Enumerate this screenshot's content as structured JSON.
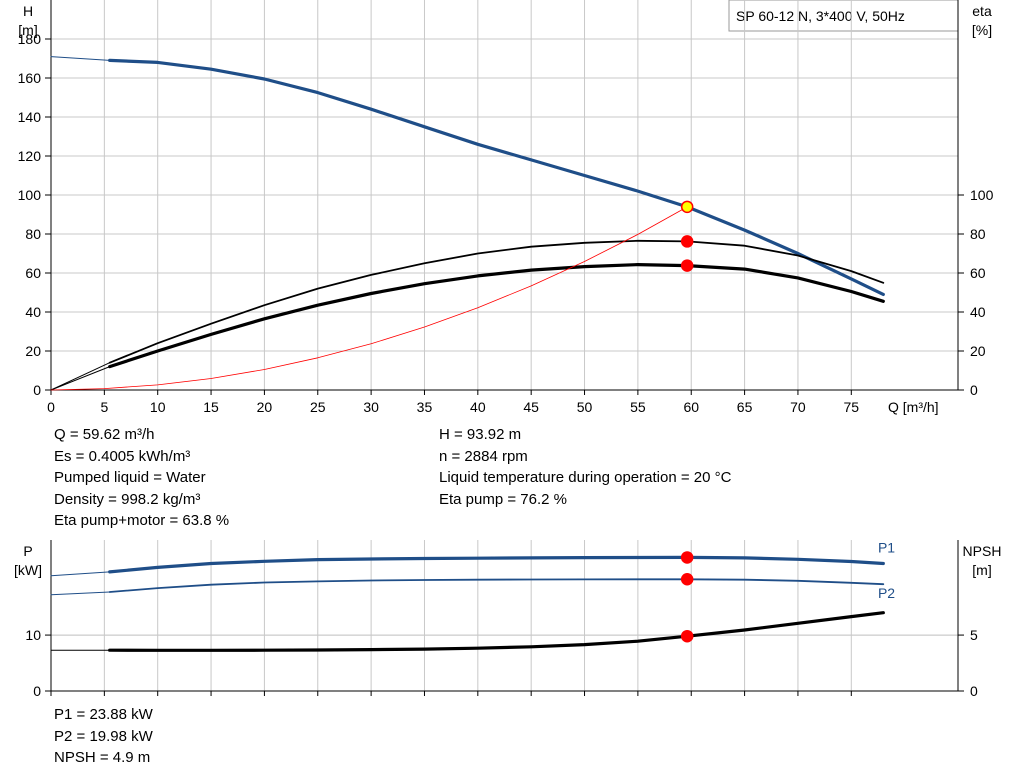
{
  "model_box": "SP 60-12 N, 3*400 V, 50Hz",
  "colors": {
    "head_curve": "#1f4e88",
    "efficiency_curve": "#000000",
    "system_curve": "#ff0000",
    "duty_point": "#ff0000",
    "duty_point_head": "#ffff00",
    "grid": "#c8c8c8"
  },
  "upper_info_left": [
    "Q = 59.62 m³/h",
    "Es = 0.4005 kWh/m³",
    "Pumped liquid = Water",
    "Density = 998.2 kg/m³",
    "Eta pump+motor = 63.8 %"
  ],
  "upper_info_right": [
    "H = 93.92 m",
    "n = 2884 rpm",
    "Liquid temperature during operation = 20 °C",
    "Eta pump = 76.2 %"
  ],
  "lower_info": [
    "P1 = 23.88 kW",
    "P2 = 19.98 kW",
    "NPSH = 4.9 m"
  ],
  "chart_data": [
    {
      "type": "line",
      "title": "",
      "xlabel": "Q [m³/h]",
      "ylabel": "H\n[m]",
      "y2label": "eta\n[%]",
      "xlim": [
        0,
        85
      ],
      "ylim": [
        0,
        200
      ],
      "y2lim": [
        0,
        200
      ],
      "x_ticks": [
        0,
        5,
        10,
        15,
        20,
        25,
        30,
        35,
        40,
        45,
        50,
        55,
        60,
        65,
        70,
        75
      ],
      "y_ticks": [
        0,
        20,
        40,
        60,
        80,
        100,
        120,
        140,
        160,
        180
      ],
      "y2_ticks": [
        0,
        20,
        40,
        60,
        80,
        100
      ],
      "grid": true,
      "series": [
        {
          "id": "head",
          "axis": "left",
          "color": "#1f4e88",
          "width": 3.2,
          "x": [
            5.5,
            10,
            15,
            20,
            25,
            30,
            35,
            40,
            45,
            50,
            55,
            59.62,
            65,
            70,
            75,
            78
          ],
          "y": [
            169,
            168,
            164.5,
            159.5,
            152.5,
            144,
            135,
            126,
            118,
            110,
            102,
            93.9,
            82,
            70,
            57,
            49
          ]
        },
        {
          "id": "head-extension",
          "axis": "left",
          "color": "#1f4e88",
          "width": 1,
          "x": [
            0,
            5.5
          ],
          "y": [
            171,
            169
          ]
        },
        {
          "id": "eta-pump",
          "axis": "right",
          "color": "#000000",
          "width": 1.8,
          "x": [
            5.5,
            10,
            15,
            20,
            25,
            30,
            35,
            40,
            45,
            50,
            55,
            59.62,
            65,
            70,
            75,
            78
          ],
          "y": [
            14,
            24,
            34,
            43.5,
            52,
            59,
            65,
            70,
            73.5,
            75.5,
            76.5,
            76.2,
            74,
            69,
            61,
            55
          ]
        },
        {
          "id": "eta-pump-motor",
          "axis": "right",
          "color": "#000000",
          "width": 3.2,
          "x": [
            5.5,
            10,
            15,
            20,
            25,
            30,
            35,
            40,
            45,
            50,
            55,
            59.62,
            65,
            70,
            75,
            78
          ],
          "y": [
            12,
            20,
            28.5,
            36.5,
            43.5,
            49.5,
            54.5,
            58.5,
            61.5,
            63.3,
            64.3,
            63.8,
            62,
            57.5,
            50.5,
            45.5
          ]
        },
        {
          "id": "eta-extension",
          "axis": "right",
          "color": "#000000",
          "width": 1,
          "x": [
            0,
            5.5
          ],
          "y": [
            0,
            14
          ]
        },
        {
          "id": "eta-motor-extension",
          "axis": "right",
          "color": "#000000",
          "width": 1,
          "x": [
            0,
            5.5
          ],
          "y": [
            0,
            12
          ]
        },
        {
          "id": "system-curve",
          "axis": "left",
          "color": "#ff0000",
          "width": 0.8,
          "x": [
            0,
            5,
            10,
            15,
            20,
            25,
            30,
            35,
            40,
            45,
            50,
            55,
            59.62
          ],
          "y": [
            0,
            0.7,
            2.6,
            5.9,
            10.5,
            16.5,
            23.7,
            32.3,
            42.2,
            53.4,
            65.9,
            79.8,
            93.9
          ]
        }
      ],
      "points": [
        {
          "id": "duty-point-head",
          "x": 59.62,
          "y": 93.92,
          "axis": "left",
          "fill": "#ffff00",
          "stroke": "#ff0000"
        },
        {
          "id": "duty-point-eta-pump",
          "x": 59.62,
          "y": 76.2,
          "axis": "right",
          "fill": "#ff0000",
          "stroke": "#ff0000"
        },
        {
          "id": "duty-point-eta-pump-motor",
          "x": 59.62,
          "y": 63.8,
          "axis": "right",
          "fill": "#ff0000",
          "stroke": "#ff0000"
        }
      ]
    },
    {
      "type": "line",
      "title": "",
      "xlabel": "",
      "ylabel": "P\n[kW]",
      "y2label": "NPSH\n[m]",
      "xlim": [
        0,
        85
      ],
      "ylim": [
        0,
        27
      ],
      "y2lim": [
        0,
        13.5
      ],
      "x_ticks": [
        0,
        5,
        10,
        15,
        20,
        25,
        30,
        35,
        40,
        45,
        50,
        55,
        60,
        65,
        70,
        75
      ],
      "y_ticks": [
        0,
        10
      ],
      "y2_ticks": [
        0,
        5
      ],
      "grid": true,
      "series": [
        {
          "id": "P1",
          "name": "P1",
          "axis": "left",
          "color": "#1f4e88",
          "width": 3.2,
          "x": [
            5.5,
            10,
            15,
            20,
            25,
            30,
            35,
            40,
            45,
            50,
            55,
            59.62,
            65,
            70,
            75,
            78
          ],
          "y": [
            21.3,
            22.1,
            22.8,
            23.2,
            23.5,
            23.6,
            23.7,
            23.75,
            23.8,
            23.85,
            23.87,
            23.88,
            23.8,
            23.55,
            23.15,
            22.8
          ]
        },
        {
          "id": "P1-extension",
          "axis": "left",
          "color": "#1f4e88",
          "width": 1,
          "x": [
            0,
            5.5
          ],
          "y": [
            20.6,
            21.3
          ]
        },
        {
          "id": "P2",
          "name": "P2",
          "axis": "left",
          "color": "#1f4e88",
          "width": 1.8,
          "x": [
            5.5,
            10,
            15,
            20,
            25,
            30,
            35,
            40,
            45,
            50,
            55,
            59.62,
            65,
            70,
            75,
            78
          ],
          "y": [
            17.7,
            18.4,
            19.0,
            19.4,
            19.6,
            19.75,
            19.85,
            19.9,
            19.93,
            19.95,
            19.97,
            19.98,
            19.9,
            19.7,
            19.35,
            19.1
          ]
        },
        {
          "id": "P2-extension",
          "axis": "left",
          "color": "#1f4e88",
          "width": 1,
          "x": [
            0,
            5.5
          ],
          "y": [
            17.2,
            17.7
          ]
        },
        {
          "id": "NPSH",
          "axis": "right",
          "color": "#000000",
          "width": 3.2,
          "x": [
            5.5,
            10,
            15,
            20,
            25,
            30,
            35,
            40,
            45,
            50,
            55,
            59.62,
            65,
            70,
            75,
            78
          ],
          "y": [
            3.65,
            3.64,
            3.64,
            3.65,
            3.67,
            3.7,
            3.75,
            3.83,
            3.95,
            4.15,
            4.45,
            4.9,
            5.45,
            6.05,
            6.65,
            7.0
          ]
        },
        {
          "id": "NPSH-extension",
          "axis": "right",
          "color": "#000000",
          "width": 1,
          "x": [
            0,
            5.5
          ],
          "y": [
            3.65,
            3.65
          ]
        }
      ],
      "labels": [
        {
          "id": "P1",
          "text": "P1",
          "x": 77.5,
          "y": 24.8,
          "axis": "left",
          "color": "#1f4e88"
        },
        {
          "id": "P2",
          "text": "P2",
          "x": 77.5,
          "y": 16.6,
          "axis": "left",
          "color": "#1f4e88"
        }
      ],
      "points": [
        {
          "id": "duty-point-P1",
          "x": 59.62,
          "y": 23.88,
          "axis": "left",
          "fill": "#ff0000",
          "stroke": "#ff0000"
        },
        {
          "id": "duty-point-P2",
          "x": 59.62,
          "y": 19.98,
          "axis": "left",
          "fill": "#ff0000",
          "stroke": "#ff0000"
        },
        {
          "id": "duty-point-NPSH",
          "x": 59.62,
          "y": 4.9,
          "axis": "right",
          "fill": "#ff0000",
          "stroke": "#ff0000"
        }
      ]
    }
  ]
}
